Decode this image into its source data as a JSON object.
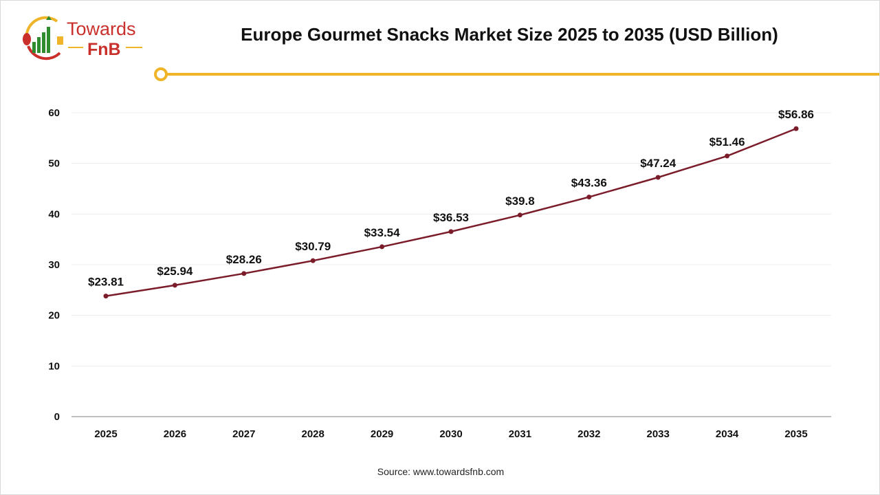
{
  "logo": {
    "line1": "Towards",
    "line2": "FnB"
  },
  "title": "Europe Gourmet Snacks Market Size 2025 to 2035 (USD Billion)",
  "source": "Source: www.towardsfnb.com",
  "colors": {
    "line": "#7b1c2a",
    "accent": "#f0b429",
    "brand_red": "#c9302c",
    "brand_green": "#2e8b2e"
  },
  "chart_data": {
    "type": "line",
    "title": "Europe Gourmet Snacks Market Size 2025 to 2035 (USD Billion)",
    "categories": [
      "2025",
      "2026",
      "2027",
      "2028",
      "2029",
      "2030",
      "2031",
      "2032",
      "2033",
      "2034",
      "2035"
    ],
    "values": [
      23.81,
      25.94,
      28.26,
      30.79,
      33.54,
      36.53,
      39.8,
      43.36,
      47.24,
      51.46,
      56.86
    ],
    "labels": [
      "$23.81",
      "$25.94",
      "$28.26",
      "$30.79",
      "$33.54",
      "$36.53",
      "$39.8",
      "$43.36",
      "$47.24",
      "$51.46",
      "$56.86"
    ],
    "yticks": [
      "0",
      "10",
      "20",
      "30",
      "40",
      "50",
      "60"
    ],
    "ylim": [
      0,
      60
    ],
    "grid": true,
    "legend": "none"
  }
}
